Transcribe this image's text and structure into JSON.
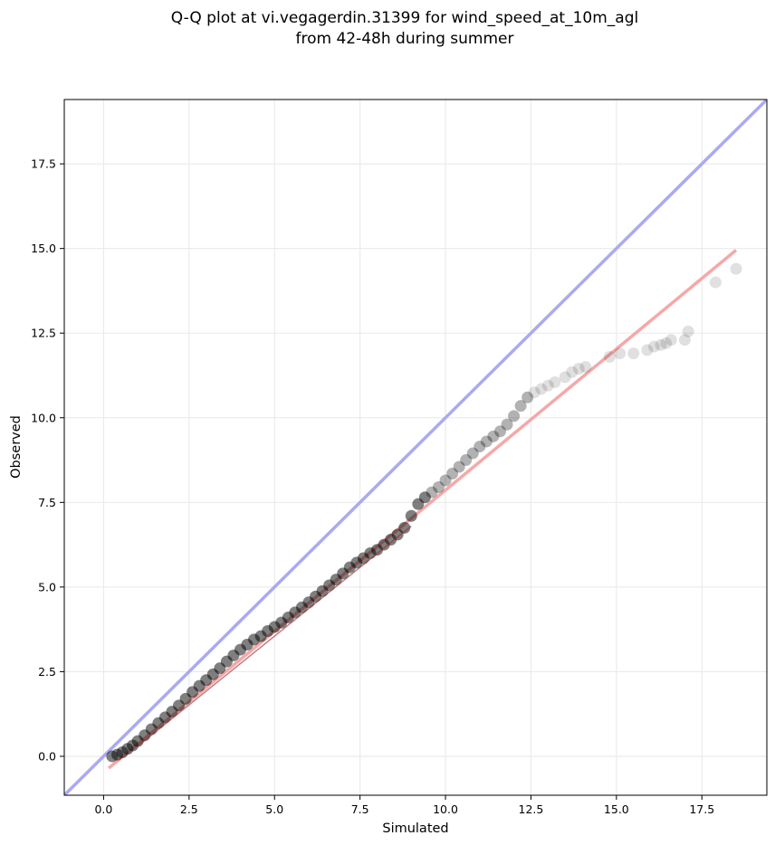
{
  "chart_data": {
    "type": "scatter",
    "title_lines": [
      "Q-Q plot at vi.vegagerdin.31399 for wind_speed_at_10m_agl",
      "from 42-48h during summer"
    ],
    "xlabel": "Simulated",
    "ylabel": "Observed",
    "xlim": [
      -1.15,
      19.4
    ],
    "ylim": [
      -1.15,
      19.4
    ],
    "xticks": [
      0.0,
      2.5,
      5.0,
      7.5,
      10.0,
      12.5,
      15.0,
      17.5
    ],
    "yticks": [
      0.0,
      2.5,
      5.0,
      7.5,
      10.0,
      12.5,
      15.0,
      17.5
    ],
    "xtick_labels": [
      "0.0",
      "2.5",
      "5.0",
      "7.5",
      "10.0",
      "12.5",
      "15.0",
      "17.5"
    ],
    "ytick_labels": [
      "0.0",
      "2.5",
      "5.0",
      "7.5",
      "10.0",
      "12.5",
      "15.0",
      "17.5"
    ],
    "grid": true,
    "identity_line": {
      "x": [
        -1.15,
        19.4
      ],
      "y": [
        -1.15,
        19.4
      ],
      "color": "#aaaaf2"
    },
    "fit_line": {
      "x": [
        0.15,
        18.5
      ],
      "y": [
        -0.35,
        14.95
      ],
      "color": "#f5a8a8"
    },
    "center_line": {
      "x": [
        1.0,
        9.0
      ],
      "y": [
        0.3,
        6.8
      ],
      "color": "#9c2a2a"
    },
    "points": {
      "color": "#000000",
      "x": [
        0.25,
        0.4,
        0.55,
        0.7,
        0.85,
        1.0,
        1.2,
        1.4,
        1.6,
        1.8,
        2.0,
        2.2,
        2.4,
        2.6,
        2.8,
        3.0,
        3.2,
        3.4,
        3.6,
        3.8,
        4.0,
        4.2,
        4.4,
        4.6,
        4.8,
        5.0,
        5.2,
        5.4,
        5.6,
        5.8,
        6.0,
        6.2,
        6.4,
        6.6,
        6.8,
        7.0,
        7.2,
        7.4,
        7.6,
        7.8,
        8.0,
        8.2,
        8.4,
        8.6,
        8.8,
        9.0,
        9.2,
        9.4,
        9.6,
        9.8,
        10.0,
        10.2,
        10.4,
        10.6,
        10.8,
        11.0,
        11.2,
        11.4,
        11.6,
        11.8,
        12.0,
        12.2,
        12.4,
        12.6,
        12.8,
        13.0,
        13.2,
        13.5,
        13.7,
        13.9,
        14.1,
        14.8,
        15.1,
        15.5,
        15.9,
        16.1,
        16.3,
        16.45,
        16.6,
        17.0,
        17.1,
        17.9,
        18.5
      ],
      "y": [
        0.0,
        0.05,
        0.12,
        0.22,
        0.32,
        0.45,
        0.62,
        0.8,
        0.98,
        1.15,
        1.32,
        1.5,
        1.7,
        1.9,
        2.08,
        2.25,
        2.42,
        2.6,
        2.8,
        2.98,
        3.15,
        3.3,
        3.45,
        3.55,
        3.7,
        3.82,
        3.95,
        4.1,
        4.25,
        4.4,
        4.55,
        4.72,
        4.88,
        5.05,
        5.22,
        5.4,
        5.58,
        5.72,
        5.85,
        6.0,
        6.1,
        6.25,
        6.4,
        6.55,
        6.75,
        7.1,
        7.45,
        7.65,
        7.8,
        7.95,
        8.15,
        8.35,
        8.55,
        8.75,
        8.95,
        9.15,
        9.3,
        9.45,
        9.6,
        9.8,
        10.05,
        10.35,
        10.6,
        10.75,
        10.85,
        10.95,
        11.05,
        11.2,
        11.35,
        11.45,
        11.5,
        11.8,
        11.9,
        11.9,
        12.0,
        12.1,
        12.15,
        12.2,
        12.3,
        12.3,
        12.55,
        14.0,
        14.4
      ]
    }
  }
}
